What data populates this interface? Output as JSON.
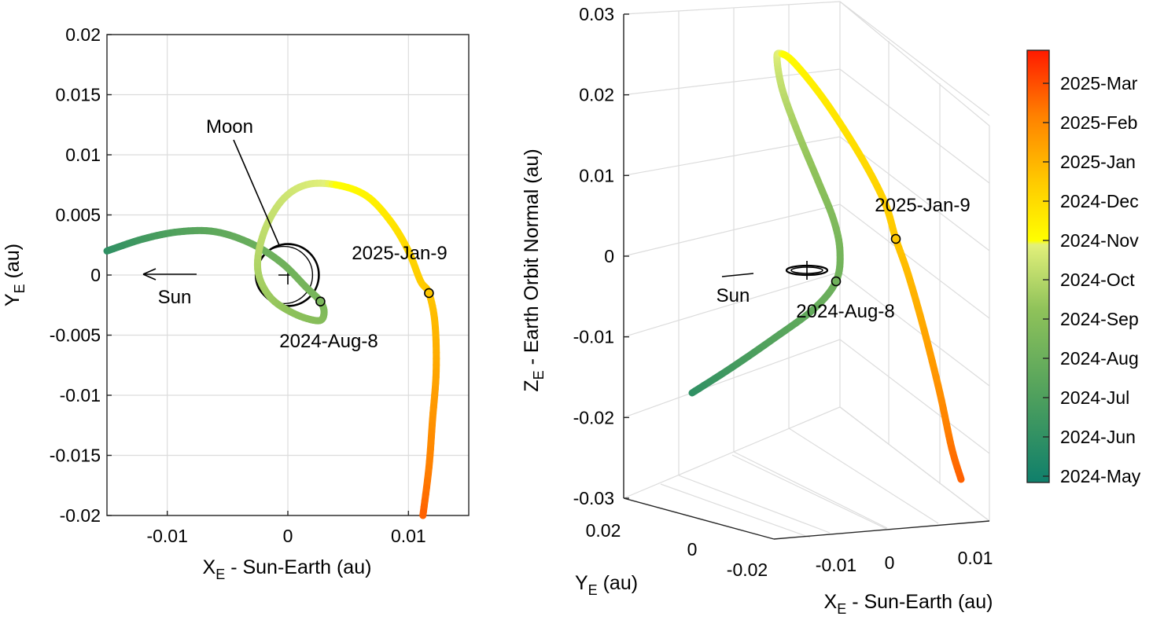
{
  "chart_data": [
    {
      "type": "line",
      "panel": "left",
      "xlabel": "X",
      "xlabel_sub": "E",
      "xlabel_rest": " - Sun-Earth (au)",
      "ylabel": "Y",
      "ylabel_sub": "E",
      "ylabel_rest": " (au)",
      "xlim": [
        -0.015,
        0.015
      ],
      "ylim": [
        -0.02,
        0.02
      ],
      "xticks": [
        -0.01,
        0,
        0.01
      ],
      "xtick_labels": [
        "-0.01",
        "0",
        "0.01"
      ],
      "yticks": [
        0.02,
        0.015,
        0.01,
        0.005,
        0,
        -0.005,
        -0.01,
        -0.015,
        -0.02
      ],
      "ytick_labels": [
        "0.02",
        "0.015",
        "0.01",
        "0.005",
        "0",
        "-0.005",
        "-0.01",
        "-0.015",
        "-0.02"
      ],
      "grid": true,
      "trajectory_color_by": "date",
      "trajectory": [
        {
          "x": -0.015,
          "y": 0.002,
          "t": 1.0
        },
        {
          "x": -0.012,
          "y": 0.003,
          "t": 1.6
        },
        {
          "x": -0.009,
          "y": 0.0036,
          "t": 2.1
        },
        {
          "x": -0.006,
          "y": 0.0036,
          "t": 2.5
        },
        {
          "x": -0.003,
          "y": 0.0026,
          "t": 2.8
        },
        {
          "x": -0.0005,
          "y": 0.001,
          "t": 3.0
        },
        {
          "x": 0.0015,
          "y": -0.001,
          "t": 3.2
        },
        {
          "x": 0.0027,
          "y": -0.0022,
          "t": 3.3
        },
        {
          "x": 0.003,
          "y": -0.0032,
          "t": 3.5
        },
        {
          "x": 0.0025,
          "y": -0.0038,
          "t": 3.7
        },
        {
          "x": 0.0005,
          "y": -0.0032,
          "t": 3.9
        },
        {
          "x": -0.0015,
          "y": -0.0018,
          "t": 4.2
        },
        {
          "x": -0.0025,
          "y": 0.0005,
          "t": 4.5
        },
        {
          "x": -0.002,
          "y": 0.0035,
          "t": 4.8
        },
        {
          "x": -0.0005,
          "y": 0.0062,
          "t": 5.0
        },
        {
          "x": 0.0015,
          "y": 0.0075,
          "t": 5.2
        },
        {
          "x": 0.004,
          "y": 0.0075,
          "t": 5.5
        },
        {
          "x": 0.0065,
          "y": 0.0066,
          "t": 5.8
        },
        {
          "x": 0.0085,
          "y": 0.0045,
          "t": 6.2
        },
        {
          "x": 0.01,
          "y": 0.002,
          "t": 6.6
        },
        {
          "x": 0.011,
          "y": -0.0005,
          "t": 6.9
        },
        {
          "x": 0.0117,
          "y": -0.0015,
          "t": 7.0
        },
        {
          "x": 0.0122,
          "y": -0.004,
          "t": 7.3
        },
        {
          "x": 0.0123,
          "y": -0.008,
          "t": 7.7
        },
        {
          "x": 0.012,
          "y": -0.012,
          "t": 8.1
        },
        {
          "x": 0.0117,
          "y": -0.016,
          "t": 8.5
        },
        {
          "x": 0.0112,
          "y": -0.02,
          "t": 9.0
        }
      ],
      "moon_orbit": {
        "center": [
          0,
          0
        ],
        "radius_au": 0.00257
      },
      "markers": [
        {
          "x": 0.0027,
          "y": -0.0022,
          "label": "2024-Aug-8"
        },
        {
          "x": 0.0117,
          "y": -0.0015,
          "label": "2025-Jan-9"
        }
      ],
      "annotations": {
        "moon": "Moon",
        "sun": "Sun"
      }
    },
    {
      "type": "line",
      "panel": "right",
      "projection": "3d",
      "xlabel": "X",
      "xlabel_sub": "E",
      "xlabel_rest": " - Sun-Earth (au)",
      "ylabel": "Y",
      "ylabel_sub": "E",
      "ylabel_rest": " (au)",
      "zlabel": "Z",
      "zlabel_sub": "E",
      "zlabel_rest": " - Earth Orbit Normal (au)",
      "zlim": [
        -0.03,
        0.03
      ],
      "zticks": [
        0.03,
        0.02,
        0.01,
        0,
        -0.01,
        -0.02,
        -0.03
      ],
      "ztick_labels": [
        "0.03",
        "0.02",
        "0.01",
        "0",
        "-0.01",
        "-0.02",
        "-0.03"
      ],
      "xtick_labels": [
        "-0.01",
        "0",
        "0.01"
      ],
      "ytick_labels": [
        "0.02",
        "0",
        "-0.02"
      ],
      "grid": true,
      "markers": [
        {
          "label": "2024-Aug-8"
        },
        {
          "label": "2025-Jan-9"
        }
      ],
      "annotations": {
        "sun": "Sun"
      }
    }
  ],
  "colorbar": {
    "labels": [
      "2025-Mar",
      "2025-Feb",
      "2025-Jan",
      "2024-Dec",
      "2024-Nov",
      "2024-Oct",
      "2024-Sep",
      "2024-Aug",
      "2024-Jul",
      "2024-Jun",
      "2024-May"
    ],
    "colors": [
      "#1a8a6a",
      "#3fa060",
      "#66b35c",
      "#9ccc58",
      "#d8ec70",
      "#ffff00",
      "#ffd400",
      "#ffa800",
      "#ff7a00",
      "#ff4a00",
      "#ff1a00"
    ]
  }
}
